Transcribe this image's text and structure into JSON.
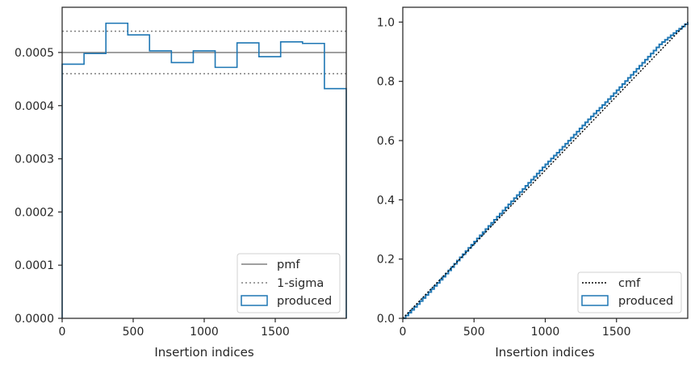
{
  "chart_data": [
    {
      "type": "histogram",
      "xlabel": "Insertion indices",
      "ylabel": "",
      "xlim": [
        0,
        2000
      ],
      "ylim": [
        0,
        0.000585
      ],
      "x_ticks": [
        0,
        500,
        1000,
        1500
      ],
      "x_tick_labels": [
        "0",
        "500",
        "1000",
        "1500"
      ],
      "y_ticks": [
        0,
        0.0001,
        0.0002,
        0.0003,
        0.0004,
        0.0005
      ],
      "y_tick_labels": [
        "0.0000",
        "0.0001",
        "0.0002",
        "0.0003",
        "0.0004",
        "0.0005"
      ],
      "bin_edges": [
        0,
        154,
        308,
        462,
        615,
        769,
        923,
        1077,
        1231,
        1385,
        1538,
        1692,
        1846,
        2000
      ],
      "values": [
        0.000478,
        0.000498,
        0.000555,
        0.000533,
        0.000503,
        0.000481,
        0.000503,
        0.000472,
        0.000518,
        0.000492,
        0.00052,
        0.000517,
        0.000432
      ],
      "pmf": 0.0005,
      "sigma_band": [
        0.00046,
        0.00054
      ],
      "grid": false,
      "legend_position": "lower-right",
      "legend": [
        {
          "label": "pmf",
          "style": "solid",
          "color": "#808080"
        },
        {
          "label": "1-sigma",
          "style": "dotted",
          "color": "#808080"
        },
        {
          "label": "produced",
          "style": "step",
          "color": "#1f77b4"
        }
      ]
    },
    {
      "type": "line",
      "xlabel": "Insertion indices",
      "ylabel": "",
      "xlim": [
        0,
        2000
      ],
      "ylim": [
        0,
        1.05
      ],
      "x_ticks": [
        0,
        500,
        1000,
        1500
      ],
      "x_tick_labels": [
        "0",
        "500",
        "1000",
        "1500"
      ],
      "y_ticks": [
        0,
        0.2,
        0.4,
        0.6,
        0.8,
        1.0
      ],
      "y_tick_labels": [
        "0.0",
        "0.2",
        "0.4",
        "0.6",
        "0.8",
        "1.0"
      ],
      "series": [
        {
          "name": "cmf",
          "style": "dotted",
          "color": "#000000",
          "x": [
            0,
            2000
          ],
          "y": [
            0,
            1.0
          ]
        },
        {
          "name": "produced",
          "style": "solid",
          "color": "#1f77b4",
          "x": [
            0,
            100,
            200,
            300,
            400,
            500,
            600,
            700,
            800,
            900,
            1000,
            1100,
            1200,
            1300,
            1400,
            1500,
            1600,
            1700,
            1800,
            1900,
            2000
          ],
          "y": [
            0,
            0.048,
            0.099,
            0.151,
            0.206,
            0.259,
            0.312,
            0.364,
            0.416,
            0.468,
            0.52,
            0.569,
            0.62,
            0.672,
            0.72,
            0.77,
            0.822,
            0.873,
            0.925,
            0.963,
            1.0
          ]
        }
      ],
      "grid": false,
      "legend_position": "lower-right",
      "legend": [
        {
          "label": "cmf",
          "style": "dotted",
          "color": "#000000"
        },
        {
          "label": "produced",
          "style": "step",
          "color": "#1f77b4"
        }
      ]
    }
  ]
}
